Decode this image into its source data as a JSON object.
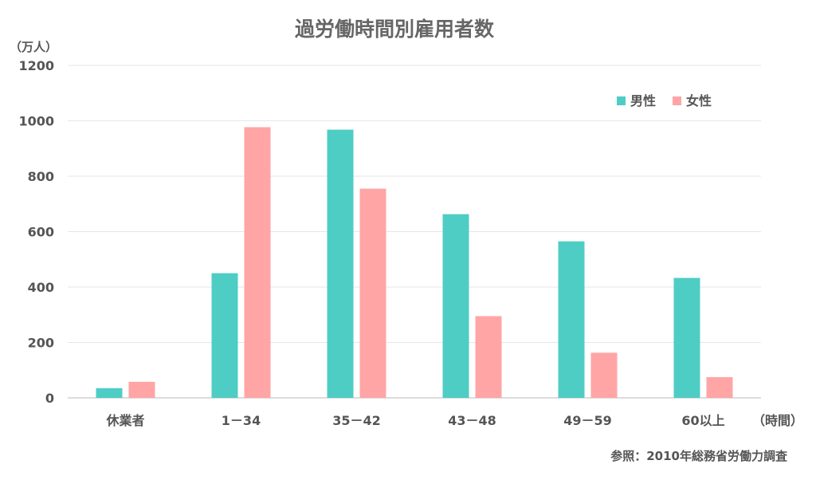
{
  "chart_data": {
    "type": "bar",
    "title": "過労働時間別雇用者数",
    "ylabel": "（万人）",
    "xlabel": "（時間）",
    "categories": [
      "休業者",
      "1－34",
      "35－42",
      "43－48",
      "49－59",
      "60以上"
    ],
    "series": [
      {
        "name": "男性",
        "color": "#4ecdc4",
        "values": [
          35,
          450,
          968,
          663,
          565,
          433
        ]
      },
      {
        "name": "女性",
        "color": "#ffa5a5",
        "values": [
          58,
          977,
          755,
          295,
          163,
          75
        ]
      }
    ],
    "ylim": [
      0,
      1200
    ],
    "yticks": [
      "0",
      "200",
      "400",
      "600",
      "800",
      "1000",
      "1200"
    ],
    "grid": true,
    "legend_position": "top-right",
    "source_note": "参照：2010年総務省労働力調査"
  }
}
